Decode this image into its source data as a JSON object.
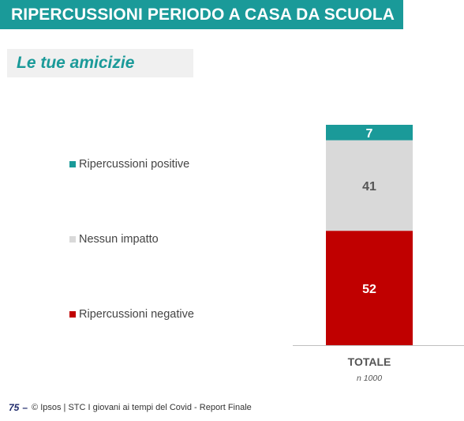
{
  "header": {
    "title": "RIPERCUSSIONI PERIODO A CASA DA SCUOLA"
  },
  "subtitle": "Le tue amicizie",
  "chart_data": {
    "type": "bar",
    "stacked": true,
    "categories": [
      "TOTALE"
    ],
    "category_note": "n 1000",
    "series": [
      {
        "name": "Ripercussioni negative",
        "values": [
          52
        ],
        "color": "#c00000",
        "label_color": "#ffffff"
      },
      {
        "name": "Nessun impatto",
        "values": [
          41
        ],
        "color": "#d9d9d9",
        "label_color": "#555555"
      },
      {
        "name": "Ripercussioni positive",
        "values": [
          7
        ],
        "color": "#1a9a99",
        "label_color": "#ffffff"
      }
    ],
    "ylim": [
      0,
      100
    ],
    "legend_position": "left",
    "grid": false
  },
  "footer": {
    "page_number": "75",
    "dash": "–",
    "text": "© Ipsos | STC I giovani ai tempi del Covid - Report Finale"
  }
}
